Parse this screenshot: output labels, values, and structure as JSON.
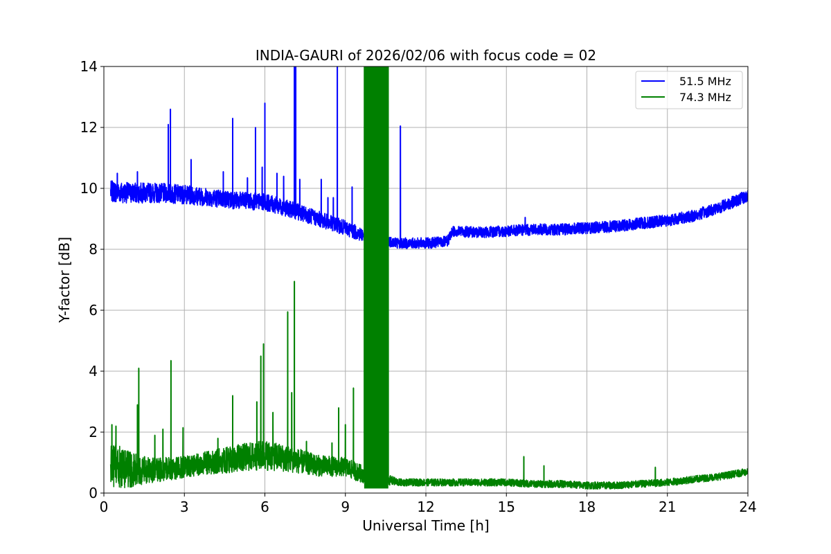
{
  "chart_data": {
    "type": "line",
    "title": "INDIA-GAURI of 2026/02/06 with focus code = 02",
    "xlabel": "Universal Time [h]",
    "ylabel": "Y-factor [dB]",
    "xlim": [
      0,
      24
    ],
    "ylim": [
      0,
      14
    ],
    "xticks": [
      "0",
      "3",
      "6",
      "9",
      "12",
      "15",
      "18",
      "21",
      "24"
    ],
    "yticks": [
      "0",
      "2",
      "4",
      "6",
      "8",
      "10",
      "12",
      "14"
    ],
    "grid": true,
    "legend_position": "top-right",
    "series": [
      {
        "name": "51.5 MHz",
        "color": "#0000ff",
        "baseline": [
          [
            0.25,
            9.9
          ],
          [
            1,
            9.85
          ],
          [
            2,
            9.85
          ],
          [
            3,
            9.8
          ],
          [
            4,
            9.7
          ],
          [
            5,
            9.6
          ],
          [
            6,
            9.55
          ],
          [
            7,
            9.3
          ],
          [
            8,
            9.0
          ],
          [
            9,
            8.7
          ],
          [
            9.7,
            8.45
          ],
          [
            10.5,
            8.3
          ],
          [
            11,
            8.2
          ],
          [
            12,
            8.2
          ],
          [
            12.8,
            8.25
          ],
          [
            13,
            8.6
          ],
          [
            14,
            8.55
          ],
          [
            15,
            8.6
          ],
          [
            16,
            8.65
          ],
          [
            17,
            8.65
          ],
          [
            18,
            8.7
          ],
          [
            19,
            8.75
          ],
          [
            20,
            8.85
          ],
          [
            21,
            8.95
          ],
          [
            22,
            9.1
          ],
          [
            23,
            9.4
          ],
          [
            24,
            9.75
          ]
        ],
        "noise": [
          [
            0.25,
            0.35
          ],
          [
            4,
            0.3
          ],
          [
            9,
            0.25
          ],
          [
            11,
            0.18
          ],
          [
            24,
            0.2
          ]
        ],
        "spikes": [
          [
            0.5,
            10.5
          ],
          [
            1.25,
            10.55
          ],
          [
            2.4,
            12.1
          ],
          [
            2.48,
            12.6
          ],
          [
            3.25,
            10.95
          ],
          [
            4.45,
            10.55
          ],
          [
            4.8,
            12.3
          ],
          [
            5.35,
            10.35
          ],
          [
            5.65,
            12.0
          ],
          [
            5.9,
            10.7
          ],
          [
            6.0,
            12.8
          ],
          [
            6.45,
            10.5
          ],
          [
            6.7,
            10.4
          ],
          [
            7.1,
            14.0
          ],
          [
            7.15,
            14.0
          ],
          [
            7.3,
            10.3
          ],
          [
            8.1,
            10.3
          ],
          [
            8.35,
            9.7
          ],
          [
            8.55,
            9.7
          ],
          [
            8.7,
            14.0
          ],
          [
            9.25,
            10.05
          ],
          [
            11.05,
            12.05
          ],
          [
            15.7,
            9.05
          ]
        ]
      },
      {
        "name": "74.3 MHz",
        "color": "#008000",
        "baseline": [
          [
            0.25,
            0.9
          ],
          [
            1,
            0.75
          ],
          [
            2,
            0.75
          ],
          [
            3,
            0.85
          ],
          [
            4,
            1.0
          ],
          [
            5,
            1.15
          ],
          [
            6,
            1.25
          ],
          [
            7,
            1.1
          ],
          [
            8,
            0.9
          ],
          [
            9,
            0.85
          ],
          [
            9.7,
            0.6
          ],
          [
            10.5,
            0.45
          ],
          [
            11,
            0.35
          ],
          [
            12,
            0.35
          ],
          [
            13,
            0.35
          ],
          [
            14,
            0.35
          ],
          [
            15,
            0.35
          ],
          [
            16,
            0.3
          ],
          [
            17,
            0.3
          ],
          [
            18,
            0.25
          ],
          [
            19,
            0.25
          ],
          [
            20,
            0.3
          ],
          [
            21,
            0.35
          ],
          [
            22,
            0.45
          ],
          [
            23,
            0.55
          ],
          [
            24,
            0.7
          ]
        ],
        "noise": [
          [
            0.25,
            0.8
          ],
          [
            1.5,
            0.45
          ],
          [
            3,
            0.35
          ],
          [
            5,
            0.45
          ],
          [
            6,
            0.5
          ],
          [
            8,
            0.35
          ],
          [
            9.5,
            0.3
          ],
          [
            11,
            0.12
          ],
          [
            24,
            0.12
          ]
        ],
        "spikes": [
          [
            0.3,
            2.25
          ],
          [
            0.45,
            2.2
          ],
          [
            1.25,
            2.9
          ],
          [
            1.3,
            4.1
          ],
          [
            1.9,
            1.9
          ],
          [
            2.2,
            2.1
          ],
          [
            2.5,
            4.35
          ],
          [
            2.95,
            2.15
          ],
          [
            4.25,
            1.8
          ],
          [
            4.8,
            3.2
          ],
          [
            5.7,
            3.0
          ],
          [
            5.85,
            4.5
          ],
          [
            5.95,
            4.9
          ],
          [
            6.3,
            2.65
          ],
          [
            6.85,
            5.95
          ],
          [
            7.0,
            3.3
          ],
          [
            7.1,
            6.95
          ],
          [
            7.55,
            1.7
          ],
          [
            8.5,
            1.65
          ],
          [
            8.75,
            2.8
          ],
          [
            9.0,
            2.25
          ],
          [
            9.3,
            3.45
          ],
          [
            15.65,
            1.2
          ],
          [
            16.4,
            0.9
          ],
          [
            20.55,
            0.85
          ]
        ],
        "saturation_band": [
          9.7,
          10.6
        ]
      }
    ]
  }
}
